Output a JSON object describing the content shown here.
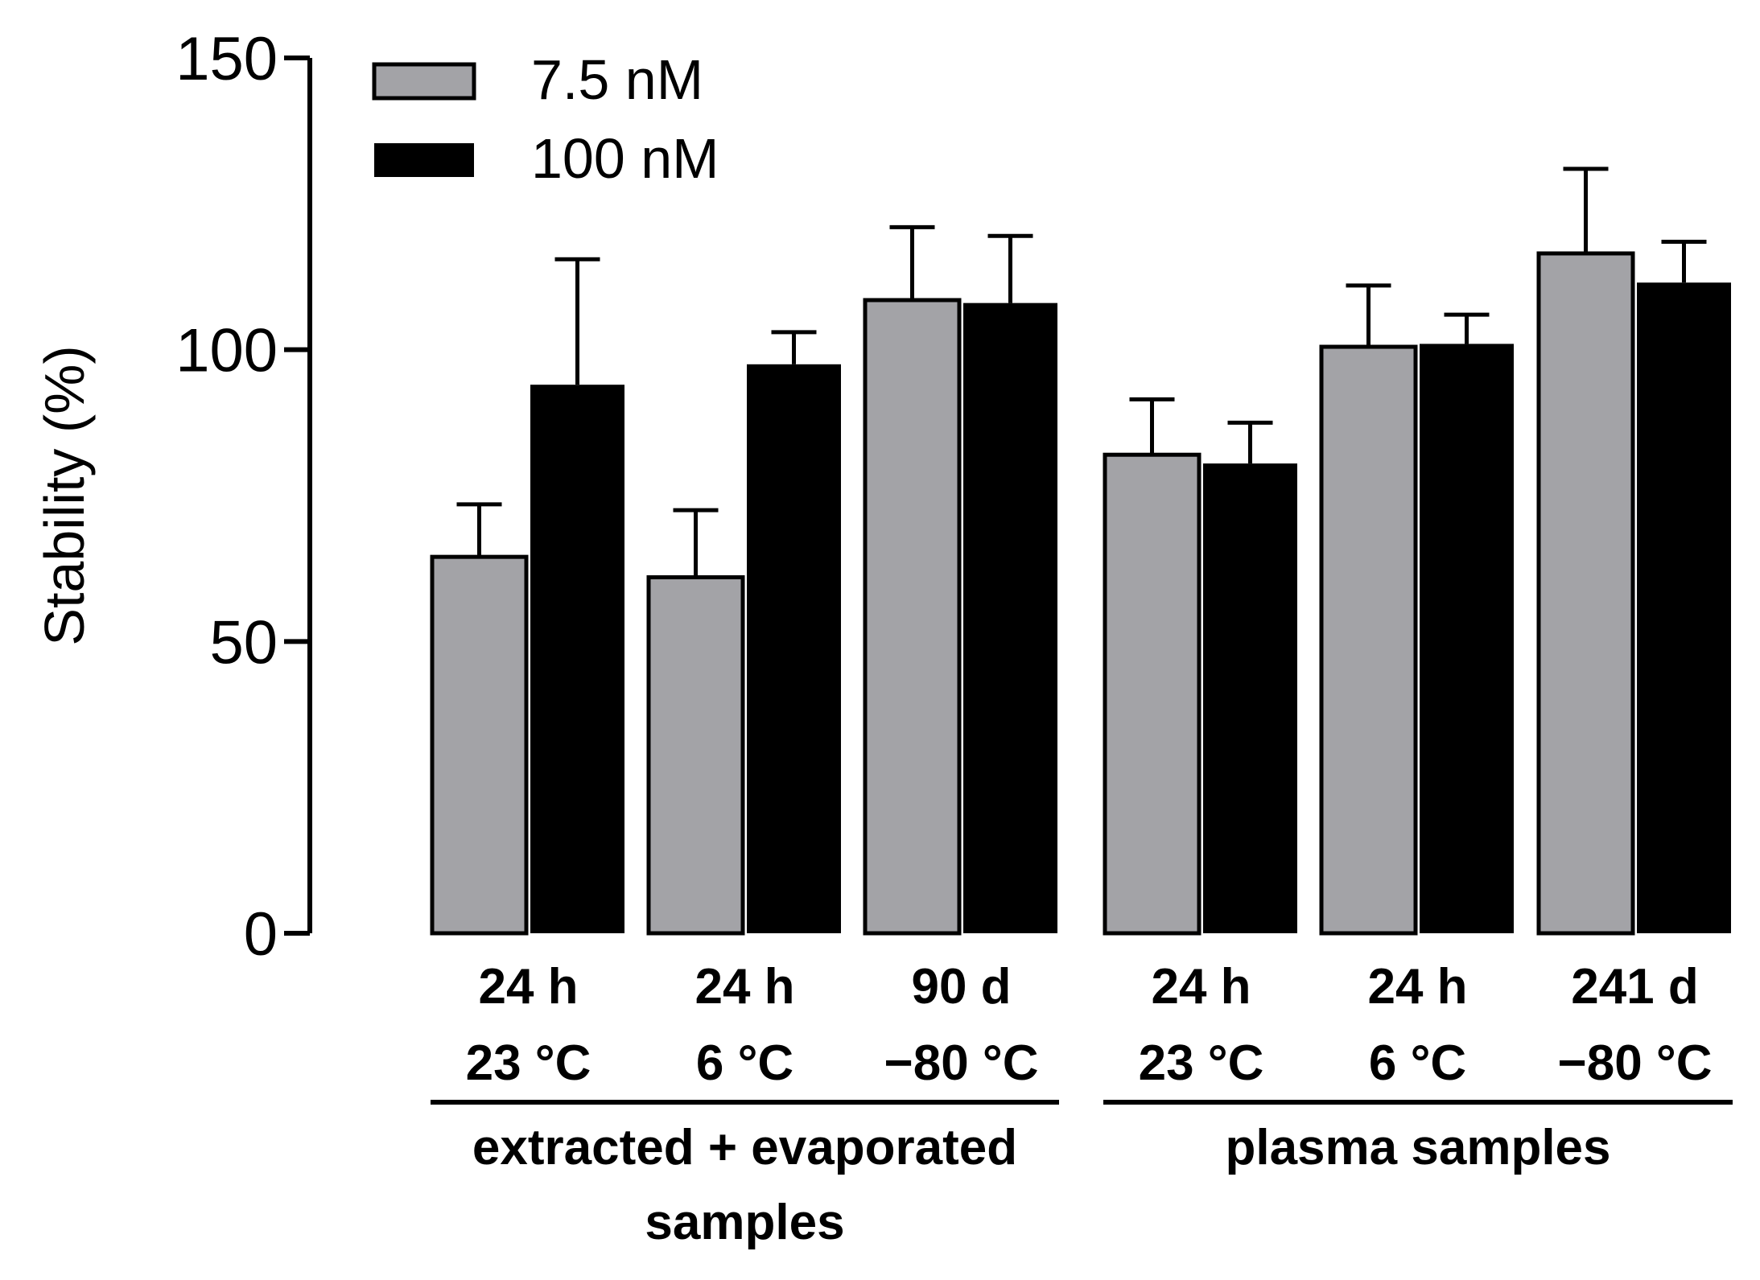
{
  "chart_data": {
    "type": "bar",
    "title": "",
    "ylabel": "Stability (%)",
    "xlabel": "",
    "ylim": [
      0,
      150
    ],
    "yticks": [
      0,
      50,
      100,
      150
    ],
    "grid": false,
    "legend_position": "top-left",
    "categories": [
      {
        "line1": "24 h",
        "line2": "23 °C"
      },
      {
        "line1": "24 h",
        "line2": "6 °C"
      },
      {
        "line1": "90 d",
        "line2": "−80 °C"
      },
      {
        "line1": "24 h",
        "line2": "23 °C"
      },
      {
        "line1": "24 h",
        "line2": "6 °C"
      },
      {
        "line1": "241 d",
        "line2": "−80 °C"
      }
    ],
    "groups": [
      {
        "label_lines": [
          "extracted + evaporated",
          "samples"
        ],
        "categories": [
          0,
          1,
          2
        ]
      },
      {
        "label_lines": [
          "plasma samples"
        ],
        "categories": [
          3,
          4,
          5
        ]
      }
    ],
    "series": [
      {
        "name": "7.5 nM",
        "color": "#a3a3a7",
        "values": [
          64.5,
          61,
          108.5,
          82,
          100.5,
          116.5
        ],
        "errors": [
          9,
          11.5,
          12.5,
          9.5,
          10.5,
          14.5
        ]
      },
      {
        "name": "100 nM",
        "color": "#000000",
        "values": [
          94,
          97.5,
          108,
          80.5,
          101,
          111.5
        ],
        "errors": [
          21.5,
          5.5,
          11.5,
          7,
          5,
          7
        ]
      }
    ]
  }
}
